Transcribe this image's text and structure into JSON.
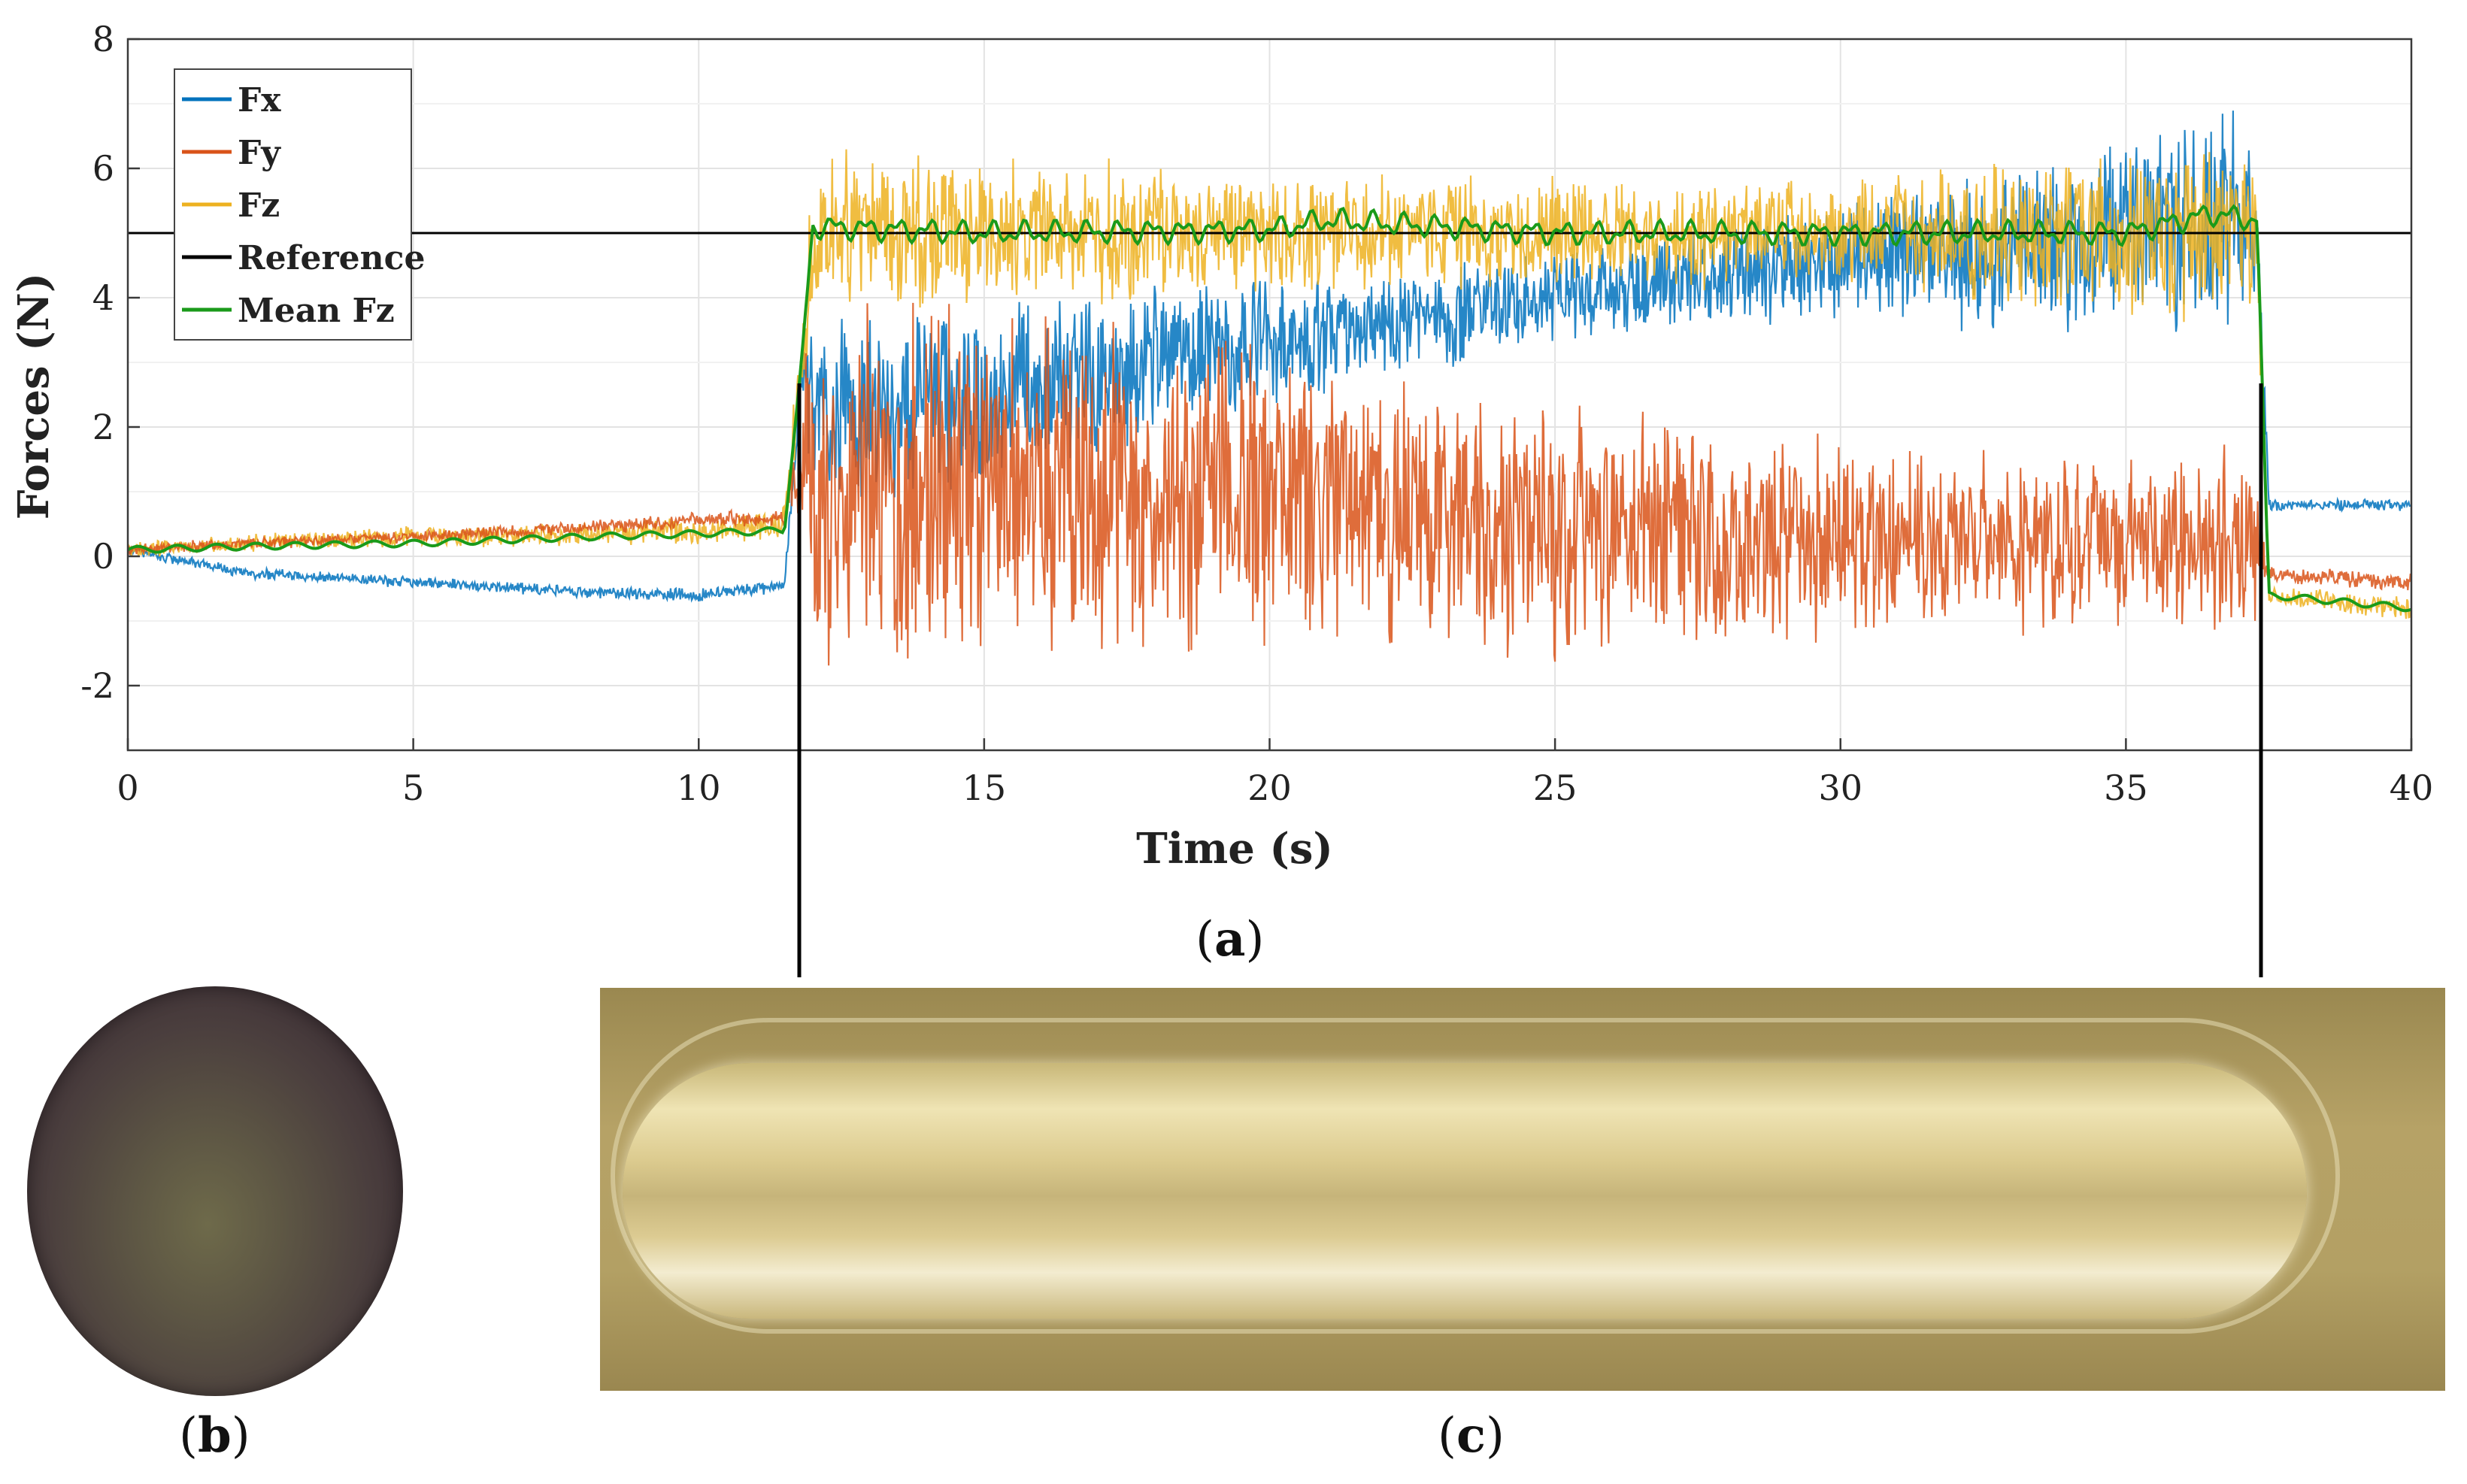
{
  "chart_data": {
    "type": "line",
    "title": "",
    "xlabel": "Time (s)",
    "ylabel": "Forces (N)",
    "xlim": [
      0,
      40
    ],
    "ylim": [
      -3,
      8
    ],
    "xticks": [
      0,
      5,
      10,
      15,
      20,
      25,
      30,
      35,
      40
    ],
    "yticks": [
      -2,
      0,
      2,
      4,
      6,
      8
    ],
    "grid": true,
    "legend_position": "top-left",
    "series": [
      {
        "name": "Fx",
        "color": "#0072BD",
        "x": [
          0,
          2,
          5,
          8,
          10,
          11.5,
          11.8,
          12,
          15,
          20,
          25,
          30,
          35,
          37.3,
          37.5,
          40
        ],
        "y": [
          0.1,
          -0.25,
          -0.4,
          -0.55,
          -0.6,
          -0.45,
          2.8,
          2.2,
          2.5,
          3.3,
          4.0,
          4.6,
          5.0,
          5.2,
          0.8,
          0.8
        ],
        "amplitude": [
          0.1,
          0.1,
          0.1,
          0.1,
          0.12,
          0.12,
          0.5,
          1.6,
          1.6,
          1.1,
          0.8,
          1.0,
          1.8,
          1.9,
          0.1,
          0.1
        ]
      },
      {
        "name": "Fy",
        "color": "#D95319",
        "x": [
          0,
          2,
          5,
          8,
          10,
          11.5,
          11.8,
          12,
          15,
          20,
          25,
          30,
          35,
          37.3,
          37.5,
          40
        ],
        "y": [
          0.1,
          0.2,
          0.3,
          0.45,
          0.55,
          0.6,
          1.5,
          1.0,
          1.0,
          1.0,
          0.35,
          0.3,
          0.25,
          0.25,
          -0.3,
          -0.4
        ],
        "amplitude": [
          0.1,
          0.1,
          0.1,
          0.12,
          0.15,
          0.15,
          1.5,
          3.0,
          3.0,
          2.6,
          2.1,
          1.7,
          1.5,
          1.5,
          0.15,
          0.15
        ]
      },
      {
        "name": "Fz",
        "color": "#EDB120",
        "x": [
          0,
          2,
          5,
          8,
          10,
          11.5,
          11.8,
          12,
          15,
          20,
          25,
          30,
          35,
          37.3,
          37.5,
          40
        ],
        "y": [
          0.1,
          0.2,
          0.3,
          0.35,
          0.4,
          0.5,
          3.0,
          5.0,
          5.0,
          5.0,
          5.0,
          5.0,
          5.0,
          5.0,
          -0.6,
          -0.8
        ],
        "amplitude": [
          0.15,
          0.15,
          0.18,
          0.2,
          0.25,
          0.3,
          1.0,
          1.6,
          1.3,
          1.0,
          0.9,
          0.9,
          1.4,
          1.6,
          0.2,
          0.2
        ]
      },
      {
        "name": "Reference",
        "color": "#000000",
        "x": [
          0,
          40
        ],
        "y": [
          5,
          5
        ]
      },
      {
        "name": "Mean Fz",
        "color": "#1A9A1A",
        "x": [
          0,
          2,
          5,
          8,
          10,
          11.5,
          11.8,
          12,
          15,
          20,
          21,
          25,
          30,
          35,
          36.5,
          37.3,
          37.5,
          40
        ],
        "y": [
          0.1,
          0.15,
          0.2,
          0.3,
          0.35,
          0.4,
          3.0,
          5.1,
          5.0,
          5.05,
          5.2,
          5.0,
          5.0,
          5.0,
          5.3,
          5.2,
          -0.6,
          -0.8
        ]
      }
    ]
  },
  "captions": {
    "a": "a",
    "b": "b",
    "c": "c"
  }
}
